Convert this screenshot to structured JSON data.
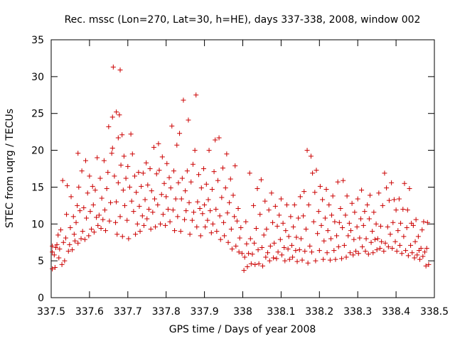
{
  "chart_data": {
    "type": "scatter",
    "title": "Rec. mssc (Lon=270, Lat=30, h=HE), days 337-338, 2008, window 002",
    "xlabel": "GPS time / Days of year 2008",
    "ylabel": "STEC from uqrg / TECUs",
    "xlim": [
      337.5,
      338.5
    ],
    "ylim": [
      0,
      35
    ],
    "x_ticks": [
      337.5,
      337.6,
      337.7,
      337.8,
      337.9,
      338.0,
      338.1,
      338.2,
      338.3,
      338.4,
      338.5
    ],
    "x_tick_labels": [
      "337.5",
      "337.6",
      "337.7",
      "337.8",
      "337.9",
      "338",
      "338.1",
      "338.2",
      "338.3",
      "338.4",
      "338.5"
    ],
    "y_ticks": [
      0,
      5,
      10,
      15,
      20,
      25,
      30,
      35
    ],
    "y_tick_labels": [
      "0",
      "5",
      "10",
      "15",
      "20",
      "25",
      "30",
      "35"
    ],
    "grid": false,
    "marker": "+",
    "color": "#cc0000",
    "points": [
      [
        337.503,
        3.9
      ],
      [
        337.503,
        6.2
      ],
      [
        337.503,
        7.0
      ],
      [
        337.508,
        5.8
      ],
      [
        337.51,
        4.1
      ],
      [
        337.512,
        6.8
      ],
      [
        337.515,
        7.2
      ],
      [
        337.518,
        8.5
      ],
      [
        337.52,
        5.4
      ],
      [
        337.522,
        6.6
      ],
      [
        337.525,
        9.2
      ],
      [
        337.528,
        4.5
      ],
      [
        337.53,
        15.9
      ],
      [
        337.532,
        7.5
      ],
      [
        337.535,
        5.0
      ],
      [
        337.538,
        8.1
      ],
      [
        337.54,
        11.3
      ],
      [
        337.542,
        15.2
      ],
      [
        337.545,
        6.3
      ],
      [
        337.548,
        7.2
      ],
      [
        337.55,
        9.5
      ],
      [
        337.552,
        13.7
      ],
      [
        337.555,
        6.5
      ],
      [
        337.558,
        11.0
      ],
      [
        337.56,
        8.6
      ],
      [
        337.562,
        7.7
      ],
      [
        337.565,
        10.2
      ],
      [
        337.568,
        12.5
      ],
      [
        337.57,
        19.6
      ],
      [
        337.57,
        7.4
      ],
      [
        337.572,
        15.0
      ],
      [
        337.575,
        11.8
      ],
      [
        337.578,
        8.0
      ],
      [
        337.58,
        17.2
      ],
      [
        337.582,
        9.0
      ],
      [
        337.585,
        12.2
      ],
      [
        337.588,
        7.9
      ],
      [
        337.59,
        18.6
      ],
      [
        337.592,
        10.8
      ],
      [
        337.595,
        14.2
      ],
      [
        337.598,
        8.4
      ],
      [
        337.6,
        16.5
      ],
      [
        337.602,
        11.7
      ],
      [
        337.605,
        9.3
      ],
      [
        337.608,
        15.1
      ],
      [
        337.61,
        12.6
      ],
      [
        337.612,
        8.9
      ],
      [
        337.615,
        14.6
      ],
      [
        337.618,
        10.9
      ],
      [
        337.62,
        19.0
      ],
      [
        337.622,
        9.8
      ],
      [
        337.625,
        11.2
      ],
      [
        337.628,
        16.2
      ],
      [
        337.63,
        9.4
      ],
      [
        337.632,
        13.5
      ],
      [
        337.635,
        10.6
      ],
      [
        337.638,
        18.6
      ],
      [
        337.64,
        11.9
      ],
      [
        337.642,
        9.1
      ],
      [
        337.645,
        14.8
      ],
      [
        337.648,
        17.0
      ],
      [
        337.65,
        23.2
      ],
      [
        337.652,
        10.4
      ],
      [
        337.655,
        12.9
      ],
      [
        337.658,
        19.6
      ],
      [
        337.66,
        20.3
      ],
      [
        337.66,
        24.5
      ],
      [
        337.662,
        31.3
      ],
      [
        337.665,
        16.5
      ],
      [
        337.668,
        10.2
      ],
      [
        337.67,
        25.2
      ],
      [
        337.67,
        13.0
      ],
      [
        337.672,
        8.6
      ],
      [
        337.675,
        21.7
      ],
      [
        337.675,
        15.6
      ],
      [
        337.678,
        24.8
      ],
      [
        337.68,
        30.9
      ],
      [
        337.68,
        11.0
      ],
      [
        337.682,
        18.0
      ],
      [
        337.685,
        22.1
      ],
      [
        337.686,
        8.3
      ],
      [
        337.688,
        14.6
      ],
      [
        337.69,
        19.2
      ],
      [
        337.692,
        12.5
      ],
      [
        337.695,
        16.2
      ],
      [
        337.698,
        10.5
      ],
      [
        337.7,
        17.8
      ],
      [
        337.702,
        8.0
      ],
      [
        337.705,
        15.0
      ],
      [
        337.708,
        22.2
      ],
      [
        337.71,
        13.1
      ],
      [
        337.712,
        19.5
      ],
      [
        337.715,
        11.7
      ],
      [
        337.718,
        16.5
      ],
      [
        337.72,
        8.6
      ],
      [
        337.722,
        14.3
      ],
      [
        337.725,
        10.0
      ],
      [
        337.728,
        17.0
      ],
      [
        337.73,
        12.4
      ],
      [
        337.732,
        9.0
      ],
      [
        337.735,
        15.1
      ],
      [
        337.738,
        11.1
      ],
      [
        337.74,
        16.9
      ],
      [
        337.742,
        9.8
      ],
      [
        337.745,
        13.3
      ],
      [
        337.748,
        18.3
      ],
      [
        337.75,
        10.7
      ],
      [
        337.752,
        15.3
      ],
      [
        337.755,
        12.0
      ],
      [
        337.758,
        17.5
      ],
      [
        337.76,
        9.3
      ],
      [
        337.762,
        14.5
      ],
      [
        337.765,
        11.6
      ],
      [
        337.768,
        20.4
      ],
      [
        337.77,
        13.4
      ],
      [
        337.772,
        9.6
      ],
      [
        337.775,
        16.8
      ],
      [
        337.778,
        12.6
      ],
      [
        337.78,
        20.9
      ],
      [
        337.782,
        17.3
      ],
      [
        337.785,
        10.0
      ],
      [
        337.788,
        14.0
      ],
      [
        337.79,
        19.1
      ],
      [
        337.792,
        11.3
      ],
      [
        337.795,
        15.5
      ],
      [
        337.798,
        9.8
      ],
      [
        337.8,
        13.7
      ],
      [
        337.802,
        18.2
      ],
      [
        337.805,
        12.0
      ],
      [
        337.808,
        16.3
      ],
      [
        337.81,
        10.3
      ],
      [
        337.812,
        14.9
      ],
      [
        337.815,
        23.3
      ],
      [
        337.818,
        11.9
      ],
      [
        337.82,
        17.2
      ],
      [
        337.822,
        9.1
      ],
      [
        337.825,
        13.4
      ],
      [
        337.828,
        20.7
      ],
      [
        337.83,
        11.0
      ],
      [
        337.832,
        15.6
      ],
      [
        337.835,
        22.3
      ],
      [
        337.838,
        9.0
      ],
      [
        337.84,
        13.4
      ],
      [
        337.842,
        16.2
      ],
      [
        337.845,
        26.8
      ],
      [
        337.848,
        10.6
      ],
      [
        337.85,
        14.5
      ],
      [
        337.852,
        11.8
      ],
      [
        337.855,
        17.2
      ],
      [
        337.858,
        24.1
      ],
      [
        337.86,
        12.9
      ],
      [
        337.862,
        8.6
      ],
      [
        337.865,
        15.7
      ],
      [
        337.868,
        10.5
      ],
      [
        337.87,
        18.1
      ],
      [
        337.872,
        11.6
      ],
      [
        337.875,
        20.0
      ],
      [
        337.878,
        27.5
      ],
      [
        337.88,
        9.6
      ],
      [
        337.882,
        13.0
      ],
      [
        337.885,
        16.7
      ],
      [
        337.888,
        12.1
      ],
      [
        337.89,
        8.4
      ],
      [
        337.892,
        14.9
      ],
      [
        337.895,
        11.4
      ],
      [
        337.898,
        17.5
      ],
      [
        337.9,
        12.6
      ],
      [
        337.902,
        9.6
      ],
      [
        337.905,
        15.4
      ],
      [
        337.908,
        10.5
      ],
      [
        337.91,
        13.3
      ],
      [
        337.912,
        20.0
      ],
      [
        337.915,
        11.8
      ],
      [
        337.918,
        8.8
      ],
      [
        337.92,
        14.7
      ],
      [
        337.922,
        10.0
      ],
      [
        337.925,
        17.1
      ],
      [
        337.928,
        21.4
      ],
      [
        337.93,
        12.0
      ],
      [
        337.932,
        9.0
      ],
      [
        337.935,
        15.9
      ],
      [
        337.938,
        21.7
      ],
      [
        337.94,
        11.1
      ],
      [
        337.942,
        7.9
      ],
      [
        337.945,
        13.6
      ],
      [
        337.948,
        17.6
      ],
      [
        337.95,
        10.2
      ],
      [
        337.952,
        8.4
      ],
      [
        337.955,
        14.9
      ],
      [
        337.958,
        19.5
      ],
      [
        337.96,
        11.5
      ],
      [
        337.962,
        7.5
      ],
      [
        337.965,
        12.9
      ],
      [
        337.968,
        16.1
      ],
      [
        337.97,
        9.3
      ],
      [
        337.972,
        6.6
      ],
      [
        337.975,
        13.9
      ],
      [
        337.978,
        11.0
      ],
      [
        337.98,
        17.9
      ],
      [
        337.982,
        7.0
      ],
      [
        337.985,
        10.4
      ],
      [
        337.988,
        12.1
      ],
      [
        337.99,
        6.2
      ],
      [
        337.992,
        8.1
      ],
      [
        337.995,
        9.5
      ],
      [
        337.998,
        6.0
      ],
      [
        338.003,
        3.7
      ],
      [
        338.005,
        5.5
      ],
      [
        338.008,
        10.3
      ],
      [
        338.01,
        7.3
      ],
      [
        338.012,
        4.2
      ],
      [
        338.015,
        6.0
      ],
      [
        338.018,
        16.9
      ],
      [
        338.02,
        8.0
      ],
      [
        338.022,
        4.6
      ],
      [
        338.025,
        5.9
      ],
      [
        338.028,
        12.5
      ],
      [
        338.03,
        7.4
      ],
      [
        338.032,
        4.5
      ],
      [
        338.035,
        9.4
      ],
      [
        338.038,
        14.8
      ],
      [
        338.04,
        6.5
      ],
      [
        338.042,
        4.6
      ],
      [
        338.045,
        11.3
      ],
      [
        338.048,
        16.0
      ],
      [
        338.05,
        6.8
      ],
      [
        338.052,
        4.3
      ],
      [
        338.055,
        8.5
      ],
      [
        338.058,
        13.1
      ],
      [
        338.06,
        5.5
      ],
      [
        338.062,
        9.3
      ],
      [
        338.065,
        6.1
      ],
      [
        338.068,
        11.9
      ],
      [
        338.07,
        5.0
      ],
      [
        338.072,
        7.0
      ],
      [
        338.075,
        14.2
      ],
      [
        338.078,
        10.2
      ],
      [
        338.08,
        5.4
      ],
      [
        338.082,
        7.4
      ],
      [
        338.085,
        12.4
      ],
      [
        338.088,
        5.3
      ],
      [
        338.09,
        9.7
      ],
      [
        338.092,
        6.2
      ],
      [
        338.095,
        11.2
      ],
      [
        338.098,
        7.9
      ],
      [
        338.1,
        13.4
      ],
      [
        338.102,
        5.8
      ],
      [
        338.105,
        10.1
      ],
      [
        338.108,
        6.8
      ],
      [
        338.11,
        5.0
      ],
      [
        338.112,
        9.1
      ],
      [
        338.115,
        12.6
      ],
      [
        338.118,
        6.6
      ],
      [
        338.12,
        8.3
      ],
      [
        338.122,
        5.2
      ],
      [
        338.125,
        11.0
      ],
      [
        338.128,
        7.1
      ],
      [
        338.13,
        5.5
      ],
      [
        338.132,
        9.6
      ],
      [
        338.135,
        12.6
      ],
      [
        338.138,
        6.4
      ],
      [
        338.14,
        8.2
      ],
      [
        338.142,
        4.9
      ],
      [
        338.145,
        10.8
      ],
      [
        338.148,
        6.5
      ],
      [
        338.15,
        13.7
      ],
      [
        338.152,
        8.0
      ],
      [
        338.155,
        5.1
      ],
      [
        338.158,
        11.1
      ],
      [
        338.16,
        14.4
      ],
      [
        338.162,
        6.3
      ],
      [
        338.165,
        9.3
      ],
      [
        338.168,
        20.0
      ],
      [
        338.17,
        4.7
      ],
      [
        338.172,
        12.6
      ],
      [
        338.175,
        7.0
      ],
      [
        338.178,
        19.2
      ],
      [
        338.18,
        6.2
      ],
      [
        338.182,
        16.9
      ],
      [
        338.185,
        10.3
      ],
      [
        338.188,
        14.3
      ],
      [
        338.19,
        5.0
      ],
      [
        338.192,
        17.3
      ],
      [
        338.195,
        8.7
      ],
      [
        338.198,
        11.7
      ],
      [
        338.2,
        6.4
      ],
      [
        338.202,
        15.1
      ],
      [
        338.205,
        9.8
      ],
      [
        338.208,
        13.3
      ],
      [
        338.21,
        5.2
      ],
      [
        338.212,
        7.7
      ],
      [
        338.215,
        10.8
      ],
      [
        338.218,
        14.7
      ],
      [
        338.22,
        6.1
      ],
      [
        338.222,
        9.1
      ],
      [
        338.225,
        12.6
      ],
      [
        338.228,
        5.1
      ],
      [
        338.23,
        8.0
      ],
      [
        338.232,
        11.2
      ],
      [
        338.235,
        13.8
      ],
      [
        338.238,
        6.4
      ],
      [
        338.24,
        10.3
      ],
      [
        338.242,
        5.2
      ],
      [
        338.245,
        8.4
      ],
      [
        338.248,
        15.7
      ],
      [
        338.25,
        6.9
      ],
      [
        338.252,
        10.2
      ],
      [
        338.255,
        12.1
      ],
      [
        338.258,
        5.3
      ],
      [
        338.26,
        9.5
      ],
      [
        338.262,
        15.9
      ],
      [
        338.265,
        7.1
      ],
      [
        338.268,
        11.2
      ],
      [
        338.27,
        5.5
      ],
      [
        338.272,
        13.8
      ],
      [
        338.275,
        8.4
      ],
      [
        338.278,
        10.1
      ],
      [
        338.28,
        6.1
      ],
      [
        338.282,
        9.1
      ],
      [
        338.285,
        12.8
      ],
      [
        338.288,
        5.8
      ],
      [
        338.29,
        7.9
      ],
      [
        338.292,
        11.6
      ],
      [
        338.295,
        6.3
      ],
      [
        338.298,
        9.6
      ],
      [
        338.3,
        13.4
      ],
      [
        338.302,
        6.0
      ],
      [
        338.305,
        8.1
      ],
      [
        338.308,
        10.7
      ],
      [
        338.31,
        14.6
      ],
      [
        338.312,
        6.9
      ],
      [
        338.315,
        9.8
      ],
      [
        338.318,
        11.7
      ],
      [
        338.32,
        6.3
      ],
      [
        338.322,
        8.0
      ],
      [
        338.325,
        12.6
      ],
      [
        338.328,
        5.9
      ],
      [
        338.33,
        10.7
      ],
      [
        338.332,
        13.9
      ],
      [
        338.335,
        7.5
      ],
      [
        338.338,
        9.0
      ],
      [
        338.34,
        6.1
      ],
      [
        338.342,
        11.6
      ],
      [
        338.345,
        7.9
      ],
      [
        338.348,
        10.0
      ],
      [
        338.35,
        6.5
      ],
      [
        338.352,
        8.0
      ],
      [
        338.355,
        14.2
      ],
      [
        338.358,
        6.7
      ],
      [
        338.36,
        9.7
      ],
      [
        338.362,
        7.6
      ],
      [
        338.365,
        12.5
      ],
      [
        338.368,
        6.3
      ],
      [
        338.37,
        16.9
      ],
      [
        338.372,
        7.4
      ],
      [
        338.375,
        14.9
      ],
      [
        338.378,
        9.6
      ],
      [
        338.38,
        6.9
      ],
      [
        338.382,
        13.2
      ],
      [
        338.385,
        8.6
      ],
      [
        338.388,
        15.6
      ],
      [
        338.39,
        6.7
      ],
      [
        338.392,
        10.2
      ],
      [
        338.395,
        13.3
      ],
      [
        338.398,
        7.6
      ],
      [
        338.4,
        11.9
      ],
      [
        338.402,
        6.3
      ],
      [
        338.405,
        9.1
      ],
      [
        338.408,
        13.4
      ],
      [
        338.41,
        7.1
      ],
      [
        338.412,
        10.1
      ],
      [
        338.415,
        6.0
      ],
      [
        338.418,
        12.0
      ],
      [
        338.42,
        8.3
      ],
      [
        338.422,
        15.5
      ],
      [
        338.425,
        6.4
      ],
      [
        338.428,
        9.5
      ],
      [
        338.43,
        11.9
      ],
      [
        338.432,
        5.7
      ],
      [
        338.435,
        14.8
      ],
      [
        338.438,
        7.1
      ],
      [
        338.44,
        10.1
      ],
      [
        338.442,
        6.1
      ],
      [
        338.445,
        9.8
      ],
      [
        338.448,
        5.4
      ],
      [
        338.45,
        7.6
      ],
      [
        338.452,
        10.6
      ],
      [
        338.455,
        5.8
      ],
      [
        338.458,
        8.3
      ],
      [
        338.46,
        6.4
      ],
      [
        338.462,
        5.2
      ],
      [
        338.465,
        6.7
      ],
      [
        338.468,
        9.2
      ],
      [
        338.47,
        5.6
      ],
      [
        338.472,
        10.3
      ],
      [
        338.475,
        6.2
      ],
      [
        338.478,
        4.3
      ],
      [
        338.48,
        6.7
      ],
      [
        338.482,
        10.2
      ],
      [
        338.485,
        4.5
      ]
    ]
  }
}
